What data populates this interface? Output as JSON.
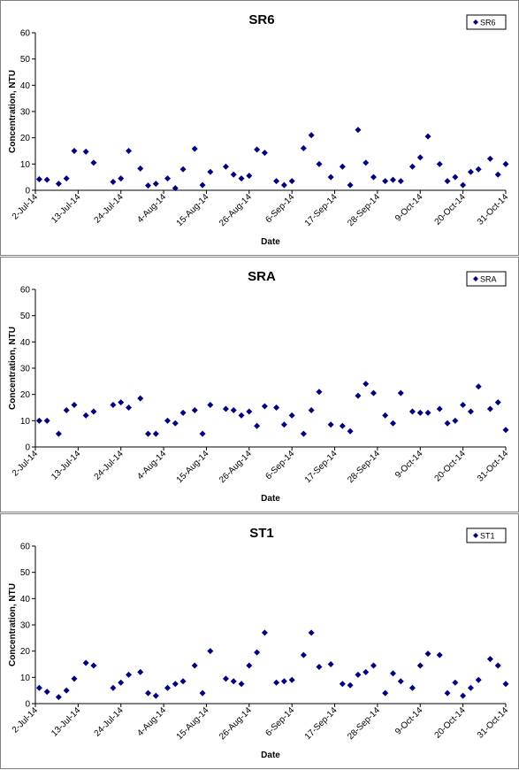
{
  "chart_data": [
    {
      "type": "scatter",
      "title": "SR6",
      "xlabel": "Date",
      "ylabel": "Concentration, NTU",
      "x": [
        "2014-07-03",
        "2014-07-05",
        "2014-07-08",
        "2014-07-10",
        "2014-07-12",
        "2014-07-15",
        "2014-07-17",
        "2014-07-22",
        "2014-07-24",
        "2014-07-26",
        "2014-07-29",
        "2014-07-31",
        "2014-08-02",
        "2014-08-05",
        "2014-08-07",
        "2014-08-09",
        "2014-08-12",
        "2014-08-14",
        "2014-08-16",
        "2014-08-20",
        "2014-08-22",
        "2014-08-24",
        "2014-08-26",
        "2014-08-28",
        "2014-08-30",
        "2014-09-02",
        "2014-09-04",
        "2014-09-06",
        "2014-09-09",
        "2014-09-11",
        "2014-09-13",
        "2014-09-16",
        "2014-09-19",
        "2014-09-21",
        "2014-09-23",
        "2014-09-25",
        "2014-09-27",
        "2014-09-30",
        "2014-10-02",
        "2014-10-04",
        "2014-10-07",
        "2014-10-09",
        "2014-10-11",
        "2014-10-14",
        "2014-10-16",
        "2014-10-18",
        "2014-10-20",
        "2014-10-22",
        "2014-10-24",
        "2014-10-27",
        "2014-10-29",
        "2014-10-31"
      ],
      "series": [
        {
          "name": "SR6",
          "color": "#000080",
          "values": [
            4.2,
            4,
            2.5,
            4.5,
            15,
            14.7,
            10.5,
            3.2,
            4.5,
            15,
            8.3,
            1.8,
            2.5,
            4.5,
            0.8,
            8,
            15.8,
            2,
            7,
            9,
            6,
            4.5,
            5.5,
            15.5,
            14.3,
            3.5,
            2,
            3.5,
            16,
            21,
            10,
            5,
            9,
            2,
            23,
            10.5,
            5,
            3.5,
            4,
            3.5,
            9,
            12.5,
            20.5,
            10,
            3.5,
            5,
            2,
            7,
            8,
            12,
            6,
            10
          ]
        }
      ],
      "xlim": [
        "2014-07-02",
        "2014-10-31"
      ],
      "xticks": [
        {
          "value": "2014-07-02",
          "label": "2-Jul-14"
        },
        {
          "value": "2014-07-13",
          "label": "13-Jul-14"
        },
        {
          "value": "2014-07-24",
          "label": "24-Jul-14"
        },
        {
          "value": "2014-08-04",
          "label": "4-Aug-14"
        },
        {
          "value": "2014-08-15",
          "label": "15-Aug-14"
        },
        {
          "value": "2014-08-26",
          "label": "26-Aug-14"
        },
        {
          "value": "2014-09-06",
          "label": "6-Sep-14"
        },
        {
          "value": "2014-09-17",
          "label": "17-Sep-14"
        },
        {
          "value": "2014-09-28",
          "label": "28-Sep-14"
        },
        {
          "value": "2014-10-09",
          "label": "9-Oct-14"
        },
        {
          "value": "2014-10-20",
          "label": "20-Oct-14"
        },
        {
          "value": "2014-10-31",
          "label": "31-Oct-14"
        }
      ],
      "ylim": [
        0,
        60
      ],
      "yticks": [
        0,
        10,
        20,
        30,
        40,
        50,
        60
      ],
      "legend": "top-right"
    },
    {
      "type": "scatter",
      "title": "SRA",
      "xlabel": "Date",
      "ylabel": "Concentration, NTU",
      "x": [
        "2014-07-03",
        "2014-07-05",
        "2014-07-08",
        "2014-07-10",
        "2014-07-12",
        "2014-07-15",
        "2014-07-17",
        "2014-07-22",
        "2014-07-24",
        "2014-07-26",
        "2014-07-29",
        "2014-07-31",
        "2014-08-02",
        "2014-08-05",
        "2014-08-07",
        "2014-08-09",
        "2014-08-12",
        "2014-08-14",
        "2014-08-16",
        "2014-08-20",
        "2014-08-22",
        "2014-08-24",
        "2014-08-26",
        "2014-08-28",
        "2014-08-30",
        "2014-09-02",
        "2014-09-04",
        "2014-09-06",
        "2014-09-09",
        "2014-09-11",
        "2014-09-13",
        "2014-09-16",
        "2014-09-19",
        "2014-09-21",
        "2014-09-23",
        "2014-09-25",
        "2014-09-27",
        "2014-09-30",
        "2014-10-02",
        "2014-10-04",
        "2014-10-07",
        "2014-10-09",
        "2014-10-11",
        "2014-10-14",
        "2014-10-16",
        "2014-10-18",
        "2014-10-20",
        "2014-10-22",
        "2014-10-24",
        "2014-10-27",
        "2014-10-29",
        "2014-10-31"
      ],
      "series": [
        {
          "name": "SRA",
          "color": "#000080",
          "values": [
            10,
            10,
            5,
            14,
            16,
            12,
            13.5,
            16,
            17,
            15,
            18.5,
            5,
            5,
            10,
            9,
            13,
            14,
            5,
            16,
            14.5,
            14,
            12,
            13.5,
            8,
            15.5,
            15,
            8.5,
            12,
            5,
            14,
            21,
            8.5,
            8,
            6,
            19.5,
            24,
            20.5,
            12,
            9,
            20.5,
            13.5,
            13,
            13,
            14.5,
            9,
            10,
            16,
            13.5,
            23,
            14.5,
            17,
            6.5
          ]
        }
      ],
      "xlim": [
        "2014-07-02",
        "2014-10-31"
      ],
      "xticks": [
        {
          "value": "2014-07-02",
          "label": "2-Jul-14"
        },
        {
          "value": "2014-07-13",
          "label": "13-Jul-14"
        },
        {
          "value": "2014-07-24",
          "label": "24-Jul-14"
        },
        {
          "value": "2014-08-04",
          "label": "4-Aug-14"
        },
        {
          "value": "2014-08-15",
          "label": "15-Aug-14"
        },
        {
          "value": "2014-08-26",
          "label": "26-Aug-14"
        },
        {
          "value": "2014-09-06",
          "label": "6-Sep-14"
        },
        {
          "value": "2014-09-17",
          "label": "17-Sep-14"
        },
        {
          "value": "2014-09-28",
          "label": "28-Sep-14"
        },
        {
          "value": "2014-10-09",
          "label": "9-Oct-14"
        },
        {
          "value": "2014-10-20",
          "label": "20-Oct-14"
        },
        {
          "value": "2014-10-31",
          "label": "31-Oct-14"
        }
      ],
      "ylim": [
        0,
        60
      ],
      "yticks": [
        0,
        10,
        20,
        30,
        40,
        50,
        60
      ],
      "legend": "top-right"
    },
    {
      "type": "scatter",
      "title": "ST1",
      "xlabel": "Date",
      "ylabel": "Concentration, NTU",
      "x": [
        "2014-07-03",
        "2014-07-05",
        "2014-07-08",
        "2014-07-10",
        "2014-07-12",
        "2014-07-15",
        "2014-07-17",
        "2014-07-22",
        "2014-07-24",
        "2014-07-26",
        "2014-07-29",
        "2014-07-31",
        "2014-08-02",
        "2014-08-05",
        "2014-08-07",
        "2014-08-09",
        "2014-08-12",
        "2014-08-14",
        "2014-08-16",
        "2014-08-20",
        "2014-08-22",
        "2014-08-24",
        "2014-08-26",
        "2014-08-28",
        "2014-08-30",
        "2014-09-02",
        "2014-09-04",
        "2014-09-06",
        "2014-09-09",
        "2014-09-11",
        "2014-09-13",
        "2014-09-16",
        "2014-09-19",
        "2014-09-21",
        "2014-09-23",
        "2014-09-25",
        "2014-09-27",
        "2014-09-30",
        "2014-10-02",
        "2014-10-04",
        "2014-10-07",
        "2014-10-09",
        "2014-10-11",
        "2014-10-14",
        "2014-10-16",
        "2014-10-18",
        "2014-10-20",
        "2014-10-22",
        "2014-10-24",
        "2014-10-27",
        "2014-10-29",
        "2014-10-31"
      ],
      "series": [
        {
          "name": "ST1",
          "color": "#000080",
          "values": [
            6,
            4.5,
            2.5,
            5,
            9.5,
            15.5,
            14.5,
            6,
            8,
            11,
            12,
            4,
            3,
            6,
            7.5,
            8.5,
            14.5,
            4,
            20,
            9.5,
            8.5,
            7.5,
            14.5,
            19.5,
            27,
            8,
            8.5,
            9,
            18.5,
            27,
            14,
            15,
            7.5,
            7,
            11,
            12,
            14.5,
            4,
            11.5,
            8.5,
            6,
            14.5,
            19,
            18.5,
            4,
            8,
            3,
            6,
            9,
            17,
            14.5,
            7.5
          ]
        }
      ],
      "xlim": [
        "2014-07-02",
        "2014-10-31"
      ],
      "xticks": [
        {
          "value": "2014-07-02",
          "label": "2-Jul-14"
        },
        {
          "value": "2014-07-13",
          "label": "13-Jul-14"
        },
        {
          "value": "2014-07-24",
          "label": "24-Jul-14"
        },
        {
          "value": "2014-08-04",
          "label": "4-Aug-14"
        },
        {
          "value": "2014-08-15",
          "label": "15-Aug-14"
        },
        {
          "value": "2014-08-26",
          "label": "26-Aug-14"
        },
        {
          "value": "2014-09-06",
          "label": "6-Sep-14"
        },
        {
          "value": "2014-09-17",
          "label": "17-Sep-14"
        },
        {
          "value": "2014-09-28",
          "label": "28-Sep-14"
        },
        {
          "value": "2014-10-09",
          "label": "9-Oct-14"
        },
        {
          "value": "2014-10-20",
          "label": "20-Oct-14"
        },
        {
          "value": "2014-10-31",
          "label": "31-Oct-14"
        }
      ],
      "ylim": [
        0,
        60
      ],
      "yticks": [
        0,
        10,
        20,
        30,
        40,
        50,
        60
      ],
      "legend": "top-right"
    }
  ]
}
